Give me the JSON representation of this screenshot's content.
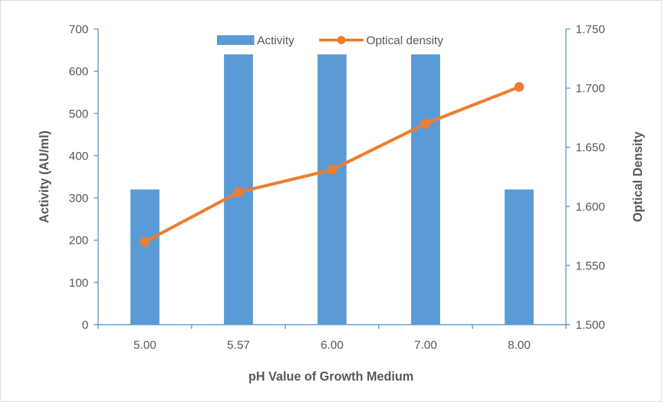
{
  "chart_data": {
    "type": "bar",
    "categories": [
      "5.00",
      "5.57",
      "6.00",
      "7.00",
      "8.00"
    ],
    "series": [
      {
        "name": "Activity",
        "type": "bar",
        "axis": "left",
        "values": [
          320,
          640,
          640,
          640,
          320
        ]
      },
      {
        "name": "Optical density",
        "type": "line",
        "axis": "right",
        "values": [
          1.57,
          1.612,
          1.631,
          1.67,
          1.701
        ]
      }
    ],
    "xlabel": "pH Value of Growth Medium",
    "ylabel": "Activity (AU/ml)",
    "y2label": "Optical Density",
    "ylim": [
      0,
      700
    ],
    "y2lim": [
      1.5,
      1.75
    ],
    "yticks": [
      "0",
      "100",
      "200",
      "300",
      "400",
      "500",
      "600",
      "700"
    ],
    "y2ticks": [
      "1.500",
      "1.550",
      "1.600",
      "1.650",
      "1.700",
      "1.750"
    ],
    "legend_position": "top",
    "grid": false,
    "colors": {
      "bar": "#5b9bd5",
      "line": "#ed7d31",
      "axis": "#5b9bd5",
      "text": "#595959"
    }
  }
}
